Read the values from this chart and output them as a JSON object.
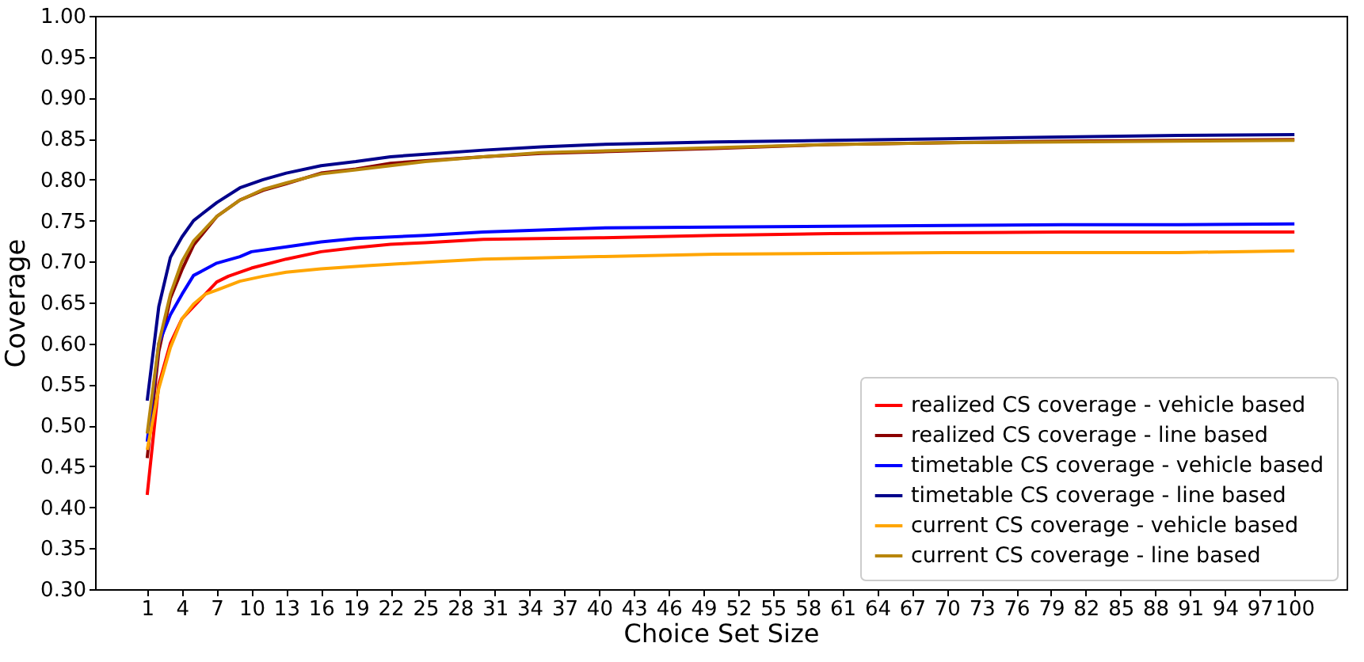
{
  "chart_data": {
    "type": "line",
    "xlabel": "Choice Set Size",
    "ylabel": "Coverage",
    "xlim": [
      -3.5,
      104.5
    ],
    "xticks": [
      1,
      4,
      7,
      10,
      13,
      16,
      19,
      22,
      25,
      28,
      31,
      34,
      37,
      40,
      43,
      46,
      49,
      52,
      55,
      58,
      61,
      64,
      67,
      70,
      73,
      76,
      79,
      82,
      85,
      88,
      91,
      94,
      97,
      100
    ],
    "ylim": [
      0.3,
      1.0
    ],
    "yticks": [
      {
        "value": 0.3,
        "label": "0.30"
      },
      {
        "value": 0.35,
        "label": "0.35"
      },
      {
        "value": 0.4,
        "label": "0.40"
      },
      {
        "value": 0.45,
        "label": "0.45"
      },
      {
        "value": 0.5,
        "label": "0.50"
      },
      {
        "value": 0.55,
        "label": "0.55"
      },
      {
        "value": 0.6,
        "label": "0.60"
      },
      {
        "value": 0.65,
        "label": "0.65"
      },
      {
        "value": 0.7,
        "label": "0.70"
      },
      {
        "value": 0.75,
        "label": "0.75"
      },
      {
        "value": 0.8,
        "label": "0.80"
      },
      {
        "value": 0.85,
        "label": "0.85"
      },
      {
        "value": 0.9,
        "label": "0.90"
      },
      {
        "value": 0.95,
        "label": "0.95"
      },
      {
        "value": 1.0,
        "label": "1.00"
      }
    ],
    "grid": false,
    "legend": "bottom right",
    "marker": "none",
    "line_style": "solid",
    "series": [
      {
        "name": "realized CS coverage - vehicle based",
        "color": "#ff0000",
        "x": [
          1,
          2,
          3,
          4,
          5,
          6,
          7,
          8,
          10,
          13,
          16,
          19,
          22,
          25,
          30,
          40,
          50,
          60,
          70,
          80,
          90,
          100
        ],
        "values": [
          0.415,
          0.55,
          0.6,
          0.63,
          0.645,
          0.66,
          0.675,
          0.682,
          0.692,
          0.703,
          0.712,
          0.717,
          0.721,
          0.723,
          0.727,
          0.729,
          0.732,
          0.734,
          0.735,
          0.736,
          0.736,
          0.736
        ]
      },
      {
        "name": "realized CS coverage - line based",
        "color": "#8b0000",
        "x": [
          1,
          2,
          3,
          4,
          5,
          7,
          9,
          11,
          13,
          16,
          19,
          22,
          25,
          30,
          35,
          40,
          50,
          60,
          70,
          80,
          90,
          100
        ],
        "values": [
          0.46,
          0.59,
          0.655,
          0.69,
          0.72,
          0.755,
          0.775,
          0.787,
          0.795,
          0.808,
          0.813,
          0.82,
          0.823,
          0.828,
          0.832,
          0.834,
          0.838,
          0.843,
          0.845,
          0.847,
          0.848,
          0.849
        ]
      },
      {
        "name": "timetable CS coverage - vehicle based",
        "color": "#0000ff",
        "x": [
          1,
          2,
          3,
          4,
          5,
          7,
          9,
          10,
          13,
          16,
          19,
          25,
          30,
          40,
          50,
          60,
          70,
          80,
          90,
          100
        ],
        "values": [
          0.48,
          0.6,
          0.635,
          0.66,
          0.683,
          0.698,
          0.706,
          0.712,
          0.718,
          0.724,
          0.728,
          0.732,
          0.736,
          0.741,
          0.742,
          0.743,
          0.744,
          0.745,
          0.745,
          0.746
        ]
      },
      {
        "name": "timetable CS coverage - line based",
        "color": "#00008b",
        "x": [
          1,
          2,
          3,
          4,
          5,
          7,
          9,
          11,
          13,
          16,
          19,
          22,
          25,
          30,
          35,
          40,
          50,
          60,
          70,
          80,
          90,
          100
        ],
        "values": [
          0.53,
          0.645,
          0.705,
          0.73,
          0.75,
          0.772,
          0.79,
          0.8,
          0.808,
          0.817,
          0.822,
          0.828,
          0.831,
          0.836,
          0.84,
          0.843,
          0.846,
          0.848,
          0.85,
          0.852,
          0.854,
          0.855
        ]
      },
      {
        "name": "current CS coverage - vehicle based",
        "color": "#ffa500",
        "x": [
          1,
          2,
          3,
          4,
          5,
          6,
          7,
          9,
          11,
          13,
          16,
          20,
          25,
          30,
          40,
          50,
          60,
          70,
          80,
          90,
          100
        ],
        "values": [
          0.47,
          0.545,
          0.595,
          0.63,
          0.648,
          0.66,
          0.665,
          0.676,
          0.682,
          0.687,
          0.691,
          0.695,
          0.699,
          0.703,
          0.706,
          0.709,
          0.71,
          0.711,
          0.711,
          0.711,
          0.713
        ]
      },
      {
        "name": "current CS coverage - line based",
        "color": "#b8860b",
        "x": [
          1,
          2,
          3,
          4,
          5,
          7,
          9,
          11,
          13,
          16,
          19,
          22,
          25,
          30,
          35,
          40,
          50,
          60,
          70,
          80,
          90,
          100
        ],
        "values": [
          0.49,
          0.6,
          0.66,
          0.7,
          0.725,
          0.755,
          0.775,
          0.788,
          0.796,
          0.807,
          0.812,
          0.817,
          0.822,
          0.828,
          0.833,
          0.835,
          0.839,
          0.843,
          0.845,
          0.846,
          0.847,
          0.848
        ]
      }
    ]
  }
}
